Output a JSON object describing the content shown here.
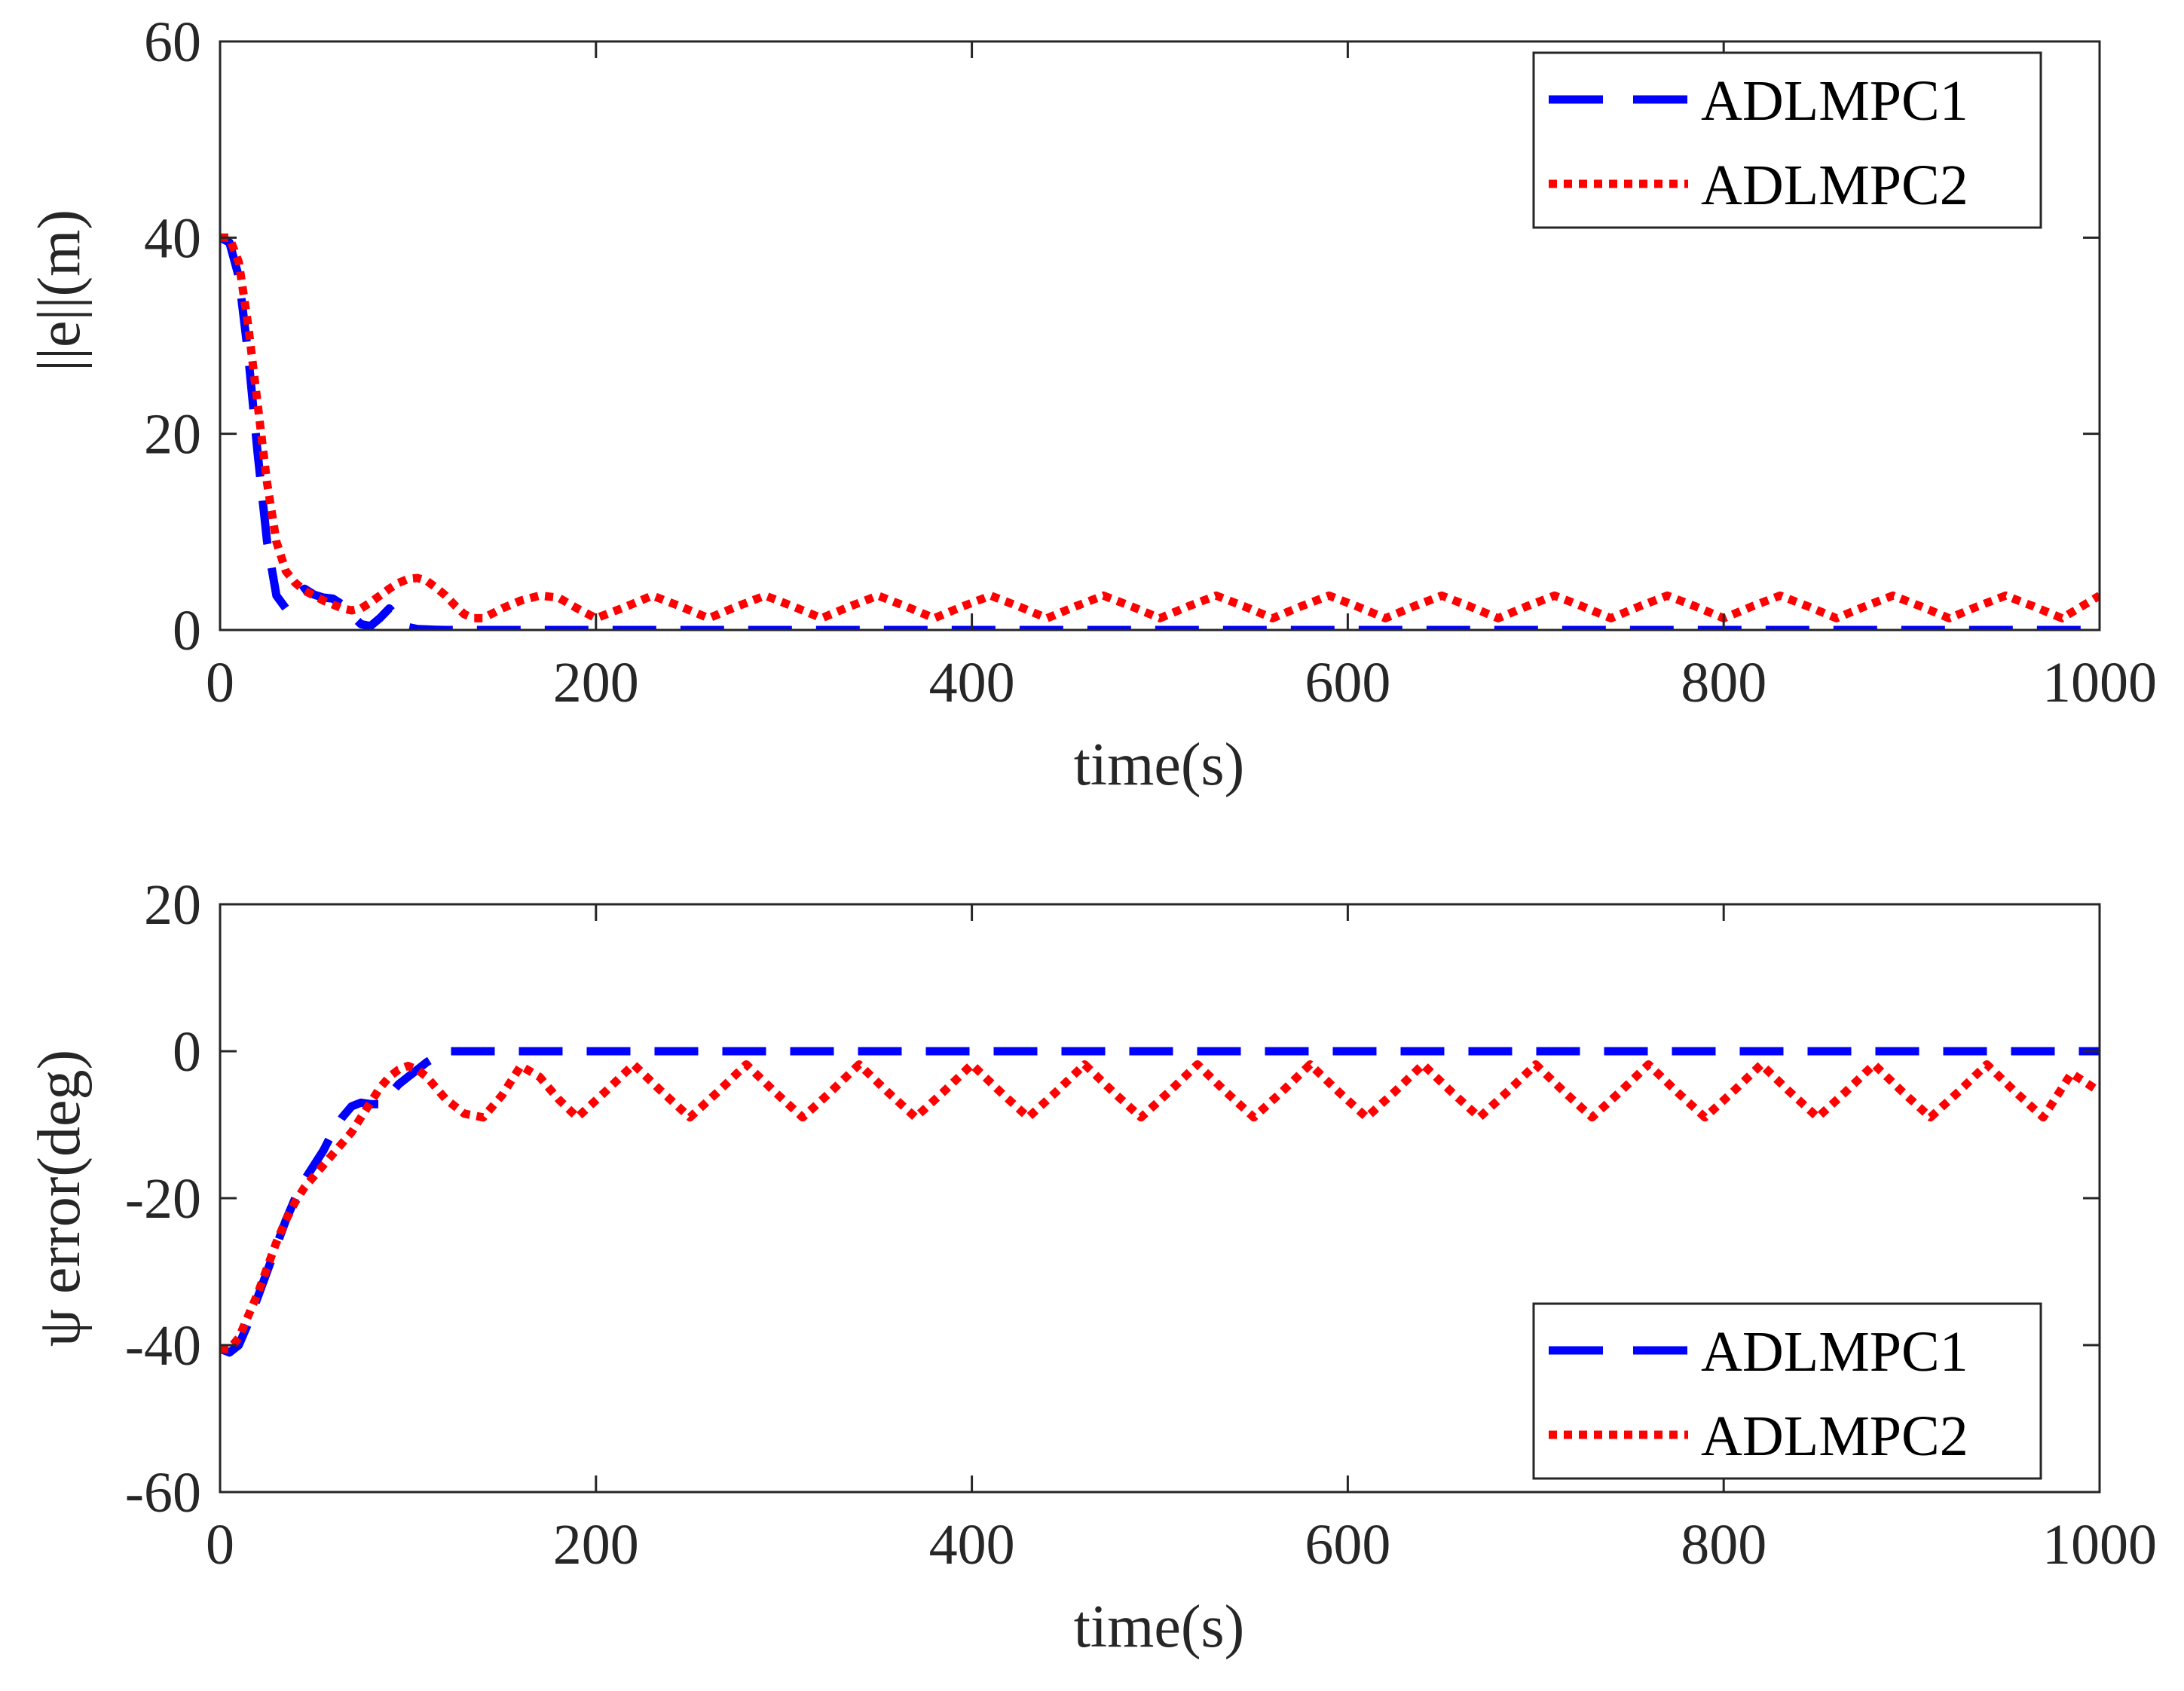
{
  "chart_data": [
    {
      "type": "line",
      "title": "",
      "xlabel": "time(s)",
      "ylabel": "||e||(m)",
      "xlim": [
        0,
        1000
      ],
      "ylim": [
        0,
        60
      ],
      "xticks": [
        "0",
        "200",
        "400",
        "600",
        "800",
        "1000"
      ],
      "yticks": [
        "0",
        "20",
        "40",
        "60"
      ],
      "legend_position": "top-right",
      "series": [
        {
          "name": "ADLMPC1",
          "style": "dashed",
          "color": "#0000FF",
          "x": [
            0,
            5,
            10,
            15,
            20,
            25,
            30,
            35,
            40,
            45,
            50,
            55,
            60,
            65,
            70,
            75,
            80,
            85,
            90,
            95,
            100,
            105,
            110,
            115,
            120,
            140,
            200,
            300,
            400,
            500,
            600,
            700,
            800,
            900,
            1000
          ],
          "y": [
            40,
            39.5,
            36,
            28,
            18,
            9,
            3.5,
            2.2,
            3.5,
            4.2,
            3.6,
            3.3,
            3.2,
            2.6,
            1.5,
            0.6,
            0.4,
            1.2,
            2.2,
            1.2,
            0.3,
            0.1,
            0.05,
            0.02,
            0,
            0,
            0,
            0,
            0,
            0,
            0,
            0,
            0,
            0,
            0
          ]
        },
        {
          "name": "ADLMPC2",
          "style": "dotted",
          "color": "#FF0000",
          "x": [
            0,
            5,
            10,
            15,
            20,
            25,
            30,
            35,
            40,
            45,
            50,
            55,
            60,
            65,
            70,
            75,
            80,
            85,
            90,
            95,
            100,
            105,
            110,
            115,
            120,
            125,
            130,
            135,
            140,
            150,
            160,
            170,
            180,
            190,
            200,
            215,
            230,
            245,
            260,
            275,
            290,
            305,
            320,
            335,
            350,
            365,
            380,
            395,
            410,
            425,
            440,
            455,
            470,
            485,
            500,
            515,
            530,
            545,
            560,
            575,
            590,
            605,
            620,
            635,
            650,
            665,
            680,
            695,
            710,
            725,
            740,
            755,
            770,
            785,
            800,
            815,
            830,
            845,
            860,
            875,
            890,
            905,
            920,
            935,
            950,
            965,
            980,
            1000
          ],
          "y": [
            40,
            40,
            37.5,
            31,
            23,
            15,
            9,
            6,
            4.8,
            4,
            3.5,
            3,
            2.6,
            2.2,
            2,
            2.2,
            2.8,
            3.5,
            4.2,
            4.8,
            5.2,
            5.3,
            5,
            4.3,
            3.5,
            2.5,
            1.6,
            1.2,
            1.2,
            2.2,
            3,
            3.5,
            3.3,
            2.2,
            1.2,
            2.3,
            3.5,
            2.4,
            1.2,
            2.4,
            3.5,
            2.4,
            1.2,
            2.4,
            3.5,
            2.4,
            1.2,
            2.4,
            3.5,
            2.4,
            1.2,
            2.4,
            3.5,
            2.4,
            1.2,
            2.4,
            3.5,
            2.4,
            1.2,
            2.4,
            3.5,
            2.4,
            1.2,
            2.4,
            3.5,
            2.4,
            1.2,
            2.4,
            3.5,
            2.4,
            1.2,
            2.4,
            3.5,
            2.4,
            1.2,
            2.4,
            3.5,
            2.4,
            1.2,
            2.4,
            3.5,
            2.4,
            1.2,
            2.4,
            3.5,
            2.4,
            1.2,
            3.5
          ]
        }
      ]
    },
    {
      "type": "line",
      "title": "",
      "xlabel": "time(s)",
      "ylabel": "ψ error(deg)",
      "xlim": [
        0,
        1000
      ],
      "ylim": [
        -60,
        20
      ],
      "xticks": [
        "0",
        "200",
        "400",
        "600",
        "800",
        "1000"
      ],
      "yticks": [
        "-60",
        "-40",
        "-20",
        "0",
        "20"
      ],
      "legend_position": "bottom-right",
      "series": [
        {
          "name": "ADLMPC1",
          "style": "dashed",
          "color": "#0000FF",
          "x": [
            0,
            5,
            10,
            15,
            20,
            25,
            30,
            35,
            40,
            45,
            50,
            55,
            60,
            65,
            70,
            75,
            80,
            85,
            90,
            95,
            100,
            105,
            110,
            115,
            120,
            140,
            200,
            300,
            400,
            500,
            600,
            700,
            800,
            900,
            1000
          ],
          "y": [
            -40.5,
            -41,
            -40,
            -37,
            -33.5,
            -30,
            -26.5,
            -23,
            -20,
            -17.5,
            -15.5,
            -13.5,
            -11,
            -9,
            -7.5,
            -7,
            -7.2,
            -7.2,
            -6,
            -4.5,
            -3.5,
            -2.5,
            -1.5,
            -0.7,
            0,
            0,
            0,
            0,
            0,
            0,
            0,
            0,
            0,
            0,
            0
          ]
        },
        {
          "name": "ADLMPC2",
          "style": "dotted",
          "color": "#FF0000",
          "x": [
            0,
            5,
            10,
            15,
            20,
            25,
            30,
            35,
            40,
            45,
            50,
            55,
            60,
            65,
            70,
            75,
            80,
            85,
            90,
            95,
            100,
            105,
            110,
            120,
            130,
            140,
            150,
            160,
            170,
            180,
            190,
            205,
            220,
            235,
            250,
            265,
            280,
            295,
            310,
            325,
            340,
            355,
            370,
            385,
            400,
            415,
            430,
            445,
            460,
            475,
            490,
            505,
            520,
            535,
            550,
            565,
            580,
            595,
            610,
            625,
            640,
            655,
            670,
            685,
            700,
            715,
            730,
            745,
            760,
            775,
            790,
            805,
            820,
            835,
            850,
            865,
            880,
            895,
            910,
            925,
            940,
            955,
            970,
            985,
            1000
          ],
          "y": [
            -40.5,
            -40.5,
            -39,
            -36,
            -33,
            -29.5,
            -26,
            -23,
            -20.5,
            -18.5,
            -17,
            -15.5,
            -14,
            -12.5,
            -11,
            -9,
            -7,
            -5,
            -3.5,
            -2.5,
            -2,
            -2.5,
            -3.5,
            -6.5,
            -8.5,
            -9,
            -6,
            -2,
            -3.5,
            -6.5,
            -9,
            -5.5,
            -1.8,
            -5.5,
            -9,
            -5.5,
            -1.8,
            -5.5,
            -9,
            -5.5,
            -1.8,
            -5.5,
            -9,
            -5.5,
            -1.8,
            -5.5,
            -9,
            -5.5,
            -1.8,
            -5.5,
            -9,
            -5.5,
            -1.8,
            -5.5,
            -9,
            -5.5,
            -1.8,
            -5.5,
            -9,
            -5.5,
            -1.8,
            -5.5,
            -9,
            -5.5,
            -1.8,
            -5.5,
            -9,
            -5.5,
            -1.8,
            -5.5,
            -9,
            -5.5,
            -1.8,
            -5.5,
            -9,
            -5.5,
            -1.8,
            -5.5,
            -9,
            -5.5,
            -1.8,
            -5.5,
            -9,
            -3,
            -5.5
          ]
        }
      ]
    }
  ]
}
